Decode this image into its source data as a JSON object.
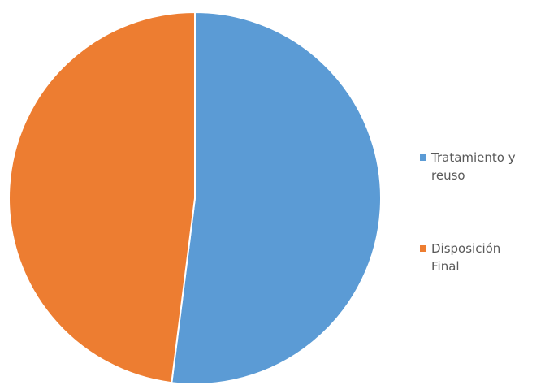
{
  "chart_data": {
    "type": "pie",
    "series": [
      {
        "name": "Tratamiento y reuso",
        "color": "#5b9bd5",
        "values": [
          52
        ]
      },
      {
        "name": "Disposición Final",
        "color": "#ed7d31",
        "values": [
          48
        ]
      }
    ],
    "legend": "right"
  }
}
